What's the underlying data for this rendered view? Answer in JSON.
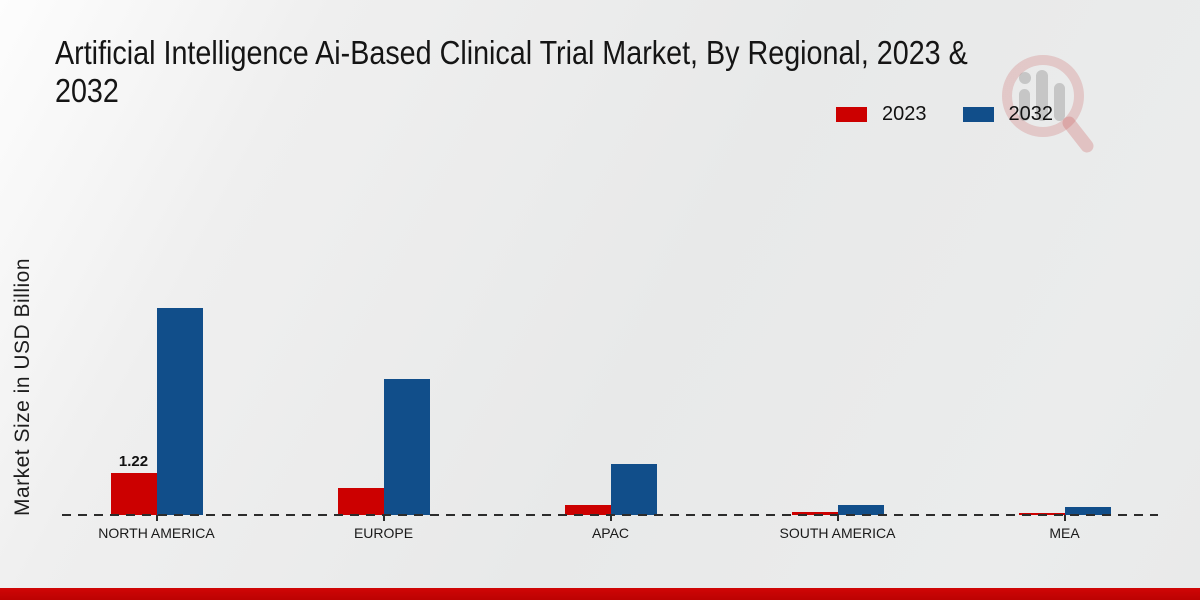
{
  "page": {
    "title_line1": "Artificial Intelligence Ai-Based Clinical Trial Market, By Regional, 2023 &",
    "title_line2": "2032"
  },
  "y_axis": {
    "label": "Market Size in USD Billion"
  },
  "legend": {
    "position": "top-right",
    "items": [
      {
        "label": "2023",
        "color": "#cc0000"
      },
      {
        "label": "2032",
        "color": "#114e8a"
      }
    ]
  },
  "watermark": {
    "icon": "magnifier-bar-chart-logo"
  },
  "colors": {
    "series_2023": "#cc0000",
    "series_2032": "#114e8a",
    "bottom_band": "#c40404",
    "baseline": "#2c2c2c"
  },
  "chart_data": {
    "type": "bar",
    "title": "Artificial Intelligence Ai-Based Clinical Trial Market, By Regional, 2023 & 2032",
    "categories": [
      "NORTH AMERICA",
      "EUROPE",
      "APAC",
      "SOUTH AMERICA",
      "MEA"
    ],
    "series": [
      {
        "name": "2023",
        "color": "#cc0000",
        "values": [
          1.22,
          0.78,
          0.28,
          0.09,
          0.07
        ]
      },
      {
        "name": "2032",
        "color": "#114e8a",
        "values": [
          6.02,
          3.95,
          1.48,
          0.3,
          0.24
        ]
      }
    ],
    "xlabel": "",
    "ylabel": "Market Size in USD Billion",
    "ylim": [
      0,
      6.5
    ],
    "grid": false,
    "legend_position": "top-right",
    "baseline_style": "dashed",
    "annotations": [
      {
        "category": "NORTH AMERICA",
        "series": "2023",
        "text": "1.22"
      }
    ]
  }
}
